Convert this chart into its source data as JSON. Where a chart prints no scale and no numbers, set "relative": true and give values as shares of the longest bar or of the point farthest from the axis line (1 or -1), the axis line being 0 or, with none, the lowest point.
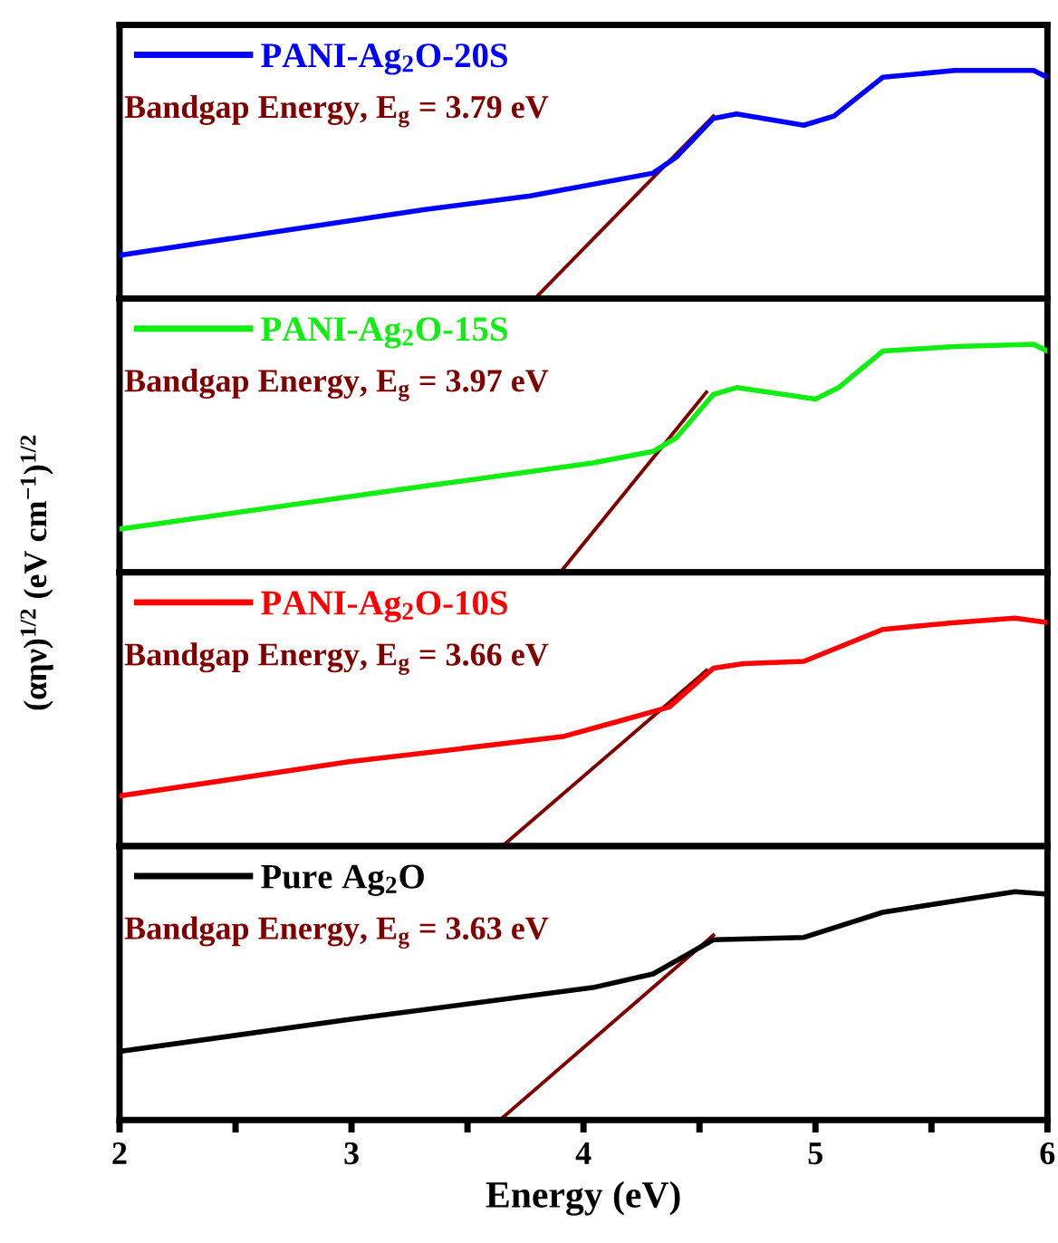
{
  "chart_data": [
    {
      "type": "line",
      "relative": true,
      "ylabel": "(αην)$^{1/2}$ (eV cm$^{−1}$)$^{1/2}$",
      "xlim": [
        2,
        6
      ],
      "tick_labels": false,
      "legend": "top left",
      "grid": false,
      "annotations": [
        "Bandgap Energy, E$_{g}$ = 3.79 eV"
      ],
      "series": [
        {
          "name": "PANI-Ag$_{2}$O-20S",
          "color": "#0000ff",
          "x": [
            2.0,
            3.31,
            3.77,
            4.3,
            4.4,
            4.56,
            4.66,
            4.95,
            5.08,
            5.29,
            5.6,
            5.94,
            6.0
          ],
          "values": [
            0.19,
            0.39,
            0.45,
            0.55,
            0.62,
            0.79,
            0.81,
            0.76,
            0.8,
            0.97,
            1.0,
            1.0,
            0.97
          ]
        },
        {
          "color": "#800000",
          "x": [
            3.79,
            4.56
          ],
          "values": [
            0,
            0.8
          ]
        }
      ]
    },
    {
      "type": "line",
      "relative": true,
      "xlim": [
        2,
        6
      ],
      "tick_labels": false,
      "legend": "top left",
      "grid": false,
      "annotations": [
        "Bandgap Energy, E$_{g}$ = 3.97 eV"
      ],
      "series": [
        {
          "name": "PANI-Ag$_{2}$O-15S",
          "color": "#11ee11",
          "x": [
            2.0,
            3.33,
            4.04,
            4.3,
            4.4,
            4.56,
            4.66,
            5.0,
            5.1,
            5.29,
            5.6,
            5.94,
            6.0
          ],
          "values": [
            0.19,
            0.38,
            0.48,
            0.53,
            0.59,
            0.78,
            0.81,
            0.76,
            0.81,
            0.97,
            0.99,
            1.0,
            0.97
          ]
        },
        {
          "color": "#800000",
          "x": [
            3.9,
            4.53
          ],
          "values": [
            0,
            0.79
          ]
        }
      ]
    },
    {
      "type": "line",
      "relative": true,
      "xlim": [
        2,
        6
      ],
      "tick_labels": false,
      "legend": "top left",
      "grid": false,
      "annotations": [
        "Bandgap Energy, E$_{g}$ = 3.66 eV"
      ],
      "series": [
        {
          "name": "PANI-Ag$_{2}$O-10S",
          "color": "#ff0000",
          "x": [
            2.0,
            2.99,
            3.91,
            4.16,
            4.37,
            4.56,
            4.69,
            4.95,
            5.29,
            5.6,
            5.86,
            6.0
          ],
          "values": [
            0.22,
            0.37,
            0.48,
            0.55,
            0.61,
            0.78,
            0.8,
            0.81,
            0.95,
            0.98,
            1.0,
            0.98
          ]
        },
        {
          "color": "#800000",
          "x": [
            3.65,
            4.53
          ],
          "values": [
            0,
            0.77
          ]
        }
      ]
    },
    {
      "type": "line",
      "relative": true,
      "xlabel": "Energy (eV)",
      "xlim": [
        2,
        6
      ],
      "xticks": [
        2,
        {
          "value": 2.5,
          "label": null
        },
        3,
        {
          "value": 3.5,
          "label": null
        },
        4,
        {
          "value": 4.5,
          "label": null
        },
        5,
        {
          "value": 5.5,
          "label": null
        },
        6
      ],
      "tick_labels": "x",
      "legend": "top left",
      "grid": false,
      "annotations": [
        "Bandgap Energy, E$_{g}$ = 3.63 eV"
      ],
      "series": [
        {
          "name": "Pure Ag$_{2}$O",
          "color": "#000000",
          "x": [
            2.0,
            2.99,
            4.04,
            4.3,
            4.56,
            4.95,
            5.29,
            5.6,
            5.86,
            6.0
          ],
          "values": [
            0.3,
            0.44,
            0.58,
            0.64,
            0.79,
            0.8,
            0.91,
            0.96,
            1.0,
            0.99
          ]
        },
        {
          "color": "#800000",
          "x": [
            3.64,
            4.56
          ],
          "values": [
            0,
            0.81
          ]
        }
      ]
    }
  ]
}
